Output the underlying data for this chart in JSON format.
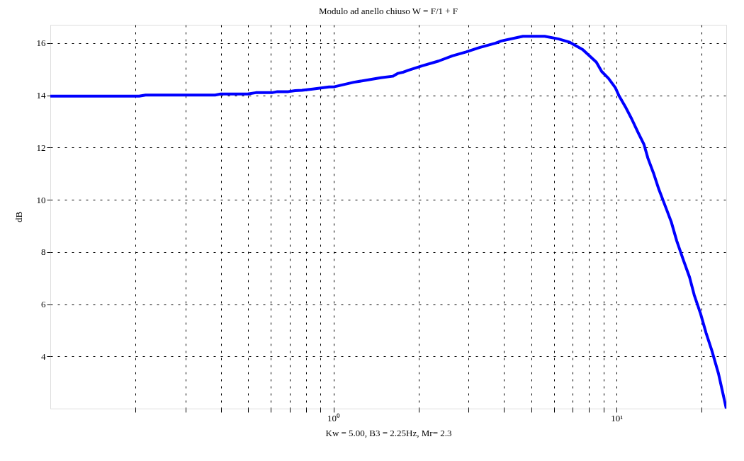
{
  "chart_data": {
    "type": "line",
    "title": "Modulo ad anello chiuso W = F/1 + F",
    "xlabel": "Kw = 5.00, B3 = 2.25Hz, Mr= 2.3",
    "ylabel": "dB",
    "log": "x",
    "grid": true,
    "marker": "none",
    "line_style": "solid",
    "xlim": [
      0.1,
      24.4
    ],
    "ylim": [
      2,
      16.7
    ],
    "xticks": [
      {
        "value": 0.2,
        "label": null
      },
      {
        "value": 0.3,
        "label": null
      },
      {
        "value": 0.4,
        "label": null
      },
      {
        "value": 0.5,
        "label": null
      },
      {
        "value": 0.6,
        "label": null
      },
      {
        "value": 0.7,
        "label": null
      },
      {
        "value": 0.8,
        "label": null
      },
      {
        "value": 0.9,
        "label": null
      },
      {
        "value": 1,
        "label": "10⁰"
      },
      {
        "value": 2,
        "label": null
      },
      {
        "value": 3,
        "label": null
      },
      {
        "value": 4,
        "label": null
      },
      {
        "value": 5,
        "label": null
      },
      {
        "value": 6,
        "label": null
      },
      {
        "value": 7,
        "label": null
      },
      {
        "value": 8,
        "label": null
      },
      {
        "value": 9,
        "label": null
      },
      {
        "value": 10,
        "label": "10¹"
      },
      {
        "value": 20,
        "label": null
      }
    ],
    "yticks": [
      4,
      6,
      8,
      10,
      12,
      14,
      16
    ],
    "series": [
      {
        "color": "#0000ff",
        "x": [
          0.1,
          0.206,
          0.217,
          0.382,
          0.399,
          0.498,
          0.532,
          0.607,
          0.634,
          0.693,
          0.732,
          0.774,
          0.845,
          0.965,
          1.01,
          1.18,
          1.47,
          1.62,
          1.69,
          1.77,
          1.85,
          2.06,
          2.35,
          2.63,
          2.94,
          3.28,
          3.74,
          3.91,
          4.67,
          5.57,
          6.22,
          6.8,
          7.59,
          8.48,
          8.86,
          9.36,
          9.9,
          10.2,
          10.8,
          11.3,
          11.9,
          12.5,
          12.9,
          13.5,
          14.1,
          14.9,
          15.6,
          16.3,
          17.2,
          18.1,
          18.8,
          19.8,
          20.7,
          21.7,
          22.9,
          24.4
        ],
        "values": [
          13.97,
          13.97,
          14.01,
          14.01,
          14.05,
          14.05,
          14.1,
          14.1,
          14.14,
          14.14,
          14.18,
          14.19,
          14.24,
          14.32,
          14.33,
          14.5,
          14.67,
          14.73,
          14.84,
          14.89,
          14.97,
          15.13,
          15.31,
          15.51,
          15.66,
          15.83,
          16.0,
          16.08,
          16.26,
          16.26,
          16.16,
          16.04,
          15.75,
          15.27,
          14.91,
          14.65,
          14.29,
          13.98,
          13.51,
          13.1,
          12.58,
          12.11,
          11.59,
          11.02,
          10.4,
          9.72,
          9.15,
          8.43,
          7.7,
          7.03,
          6.35,
          5.63,
          4.9,
          4.22,
          3.34,
          2.0
        ]
      }
    ]
  }
}
